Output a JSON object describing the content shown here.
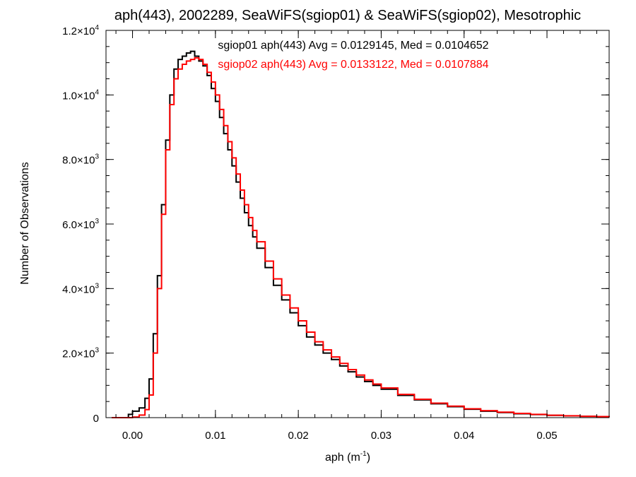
{
  "chart_data": {
    "type": "line",
    "step": true,
    "title": "aph(443), 2002289, SeaWiFS(sgiop01) & SeaWiFS(sgiop02), Mesotrophic",
    "xlabel_main": "aph (m",
    "xlabel_sup": "-1",
    "xlabel_close": ")",
    "ylabel": "Number of Observations",
    "xlim": [
      -0.0032,
      0.0575
    ],
    "ylim": [
      0,
      12000
    ],
    "x_ticks": [
      {
        "value": 0.0,
        "label": "0.00"
      },
      {
        "value": 0.01,
        "label": "0.01"
      },
      {
        "value": 0.02,
        "label": "0.02"
      },
      {
        "value": 0.03,
        "label": "0.03"
      },
      {
        "value": 0.04,
        "label": "0.04"
      },
      {
        "value": 0.05,
        "label": "0.05"
      }
    ],
    "x_minor_step": 0.002,
    "y_ticks": [
      {
        "value": 0,
        "mant": "0",
        "exp": ""
      },
      {
        "value": 2000,
        "mant": "2.0×10",
        "exp": "3"
      },
      {
        "value": 4000,
        "mant": "4.0×10",
        "exp": "3"
      },
      {
        "value": 6000,
        "mant": "6.0×10",
        "exp": "3"
      },
      {
        "value": 8000,
        "mant": "8.0×10",
        "exp": "3"
      },
      {
        "value": 10000,
        "mant": "1.0×10",
        "exp": "4"
      },
      {
        "value": 12000,
        "mant": "1.2×10",
        "exp": "4"
      }
    ],
    "y_minor_step": 500,
    "series": [
      {
        "name": "sgiop01 aph(443) Avg = 0.0129145, Med = 0.0104652",
        "color": "#000000",
        "x": [
          -0.0025,
          -0.0005,
          0.0,
          0.0008,
          0.0015,
          0.002,
          0.0025,
          0.003,
          0.0035,
          0.004,
          0.0045,
          0.005,
          0.0055,
          0.006,
          0.0065,
          0.007,
          0.0075,
          0.008,
          0.0085,
          0.009,
          0.0095,
          0.01,
          0.0105,
          0.011,
          0.0115,
          0.012,
          0.0125,
          0.013,
          0.0135,
          0.014,
          0.0145,
          0.015,
          0.016,
          0.017,
          0.018,
          0.019,
          0.02,
          0.021,
          0.022,
          0.023,
          0.024,
          0.025,
          0.026,
          0.027,
          0.028,
          0.029,
          0.03,
          0.032,
          0.034,
          0.036,
          0.038,
          0.04,
          0.042,
          0.044,
          0.046,
          0.048,
          0.05,
          0.052,
          0.054,
          0.056,
          0.0575
        ],
        "y": [
          0,
          100,
          200,
          300,
          600,
          1200,
          2600,
          4400,
          6600,
          8600,
          10000,
          10800,
          11100,
          11200,
          11300,
          11350,
          11200,
          11050,
          10900,
          10600,
          10200,
          9800,
          9300,
          8800,
          8300,
          7800,
          7300,
          6800,
          6350,
          5950,
          5600,
          5250,
          4650,
          4100,
          3650,
          3250,
          2850,
          2500,
          2250,
          2000,
          1800,
          1600,
          1420,
          1260,
          1120,
          1000,
          880,
          690,
          550,
          430,
          340,
          260,
          200,
          160,
          120,
          95,
          70,
          55,
          40,
          30,
          20
        ]
      },
      {
        "name": "sgiop02 aph(443) Avg = 0.0133122, Med = 0.0107884",
        "color": "#ff0000",
        "x": [
          -0.0025,
          -0.0005,
          0.0,
          0.0008,
          0.0015,
          0.002,
          0.0025,
          0.003,
          0.0035,
          0.004,
          0.0045,
          0.005,
          0.0055,
          0.006,
          0.0065,
          0.007,
          0.0075,
          0.008,
          0.0085,
          0.009,
          0.0095,
          0.01,
          0.0105,
          0.011,
          0.0115,
          0.012,
          0.0125,
          0.013,
          0.0135,
          0.014,
          0.0145,
          0.015,
          0.016,
          0.017,
          0.018,
          0.019,
          0.02,
          0.021,
          0.022,
          0.023,
          0.024,
          0.025,
          0.026,
          0.027,
          0.028,
          0.029,
          0.03,
          0.032,
          0.034,
          0.036,
          0.038,
          0.04,
          0.042,
          0.044,
          0.046,
          0.048,
          0.05,
          0.052,
          0.054,
          0.056,
          0.0575
        ],
        "y": [
          0,
          0,
          20,
          80,
          250,
          700,
          2000,
          4000,
          6300,
          8300,
          9700,
          10500,
          10800,
          10950,
          11050,
          11100,
          11150,
          11100,
          10950,
          10700,
          10400,
          10000,
          9550,
          9050,
          8550,
          8050,
          7550,
          7050,
          6600,
          6200,
          5800,
          5450,
          4850,
          4300,
          3800,
          3400,
          3000,
          2650,
          2350,
          2100,
          1880,
          1680,
          1490,
          1320,
          1170,
          1040,
          920,
          720,
          570,
          450,
          355,
          275,
          215,
          170,
          130,
          100,
          75,
          58,
          42,
          32,
          22
        ]
      }
    ]
  }
}
